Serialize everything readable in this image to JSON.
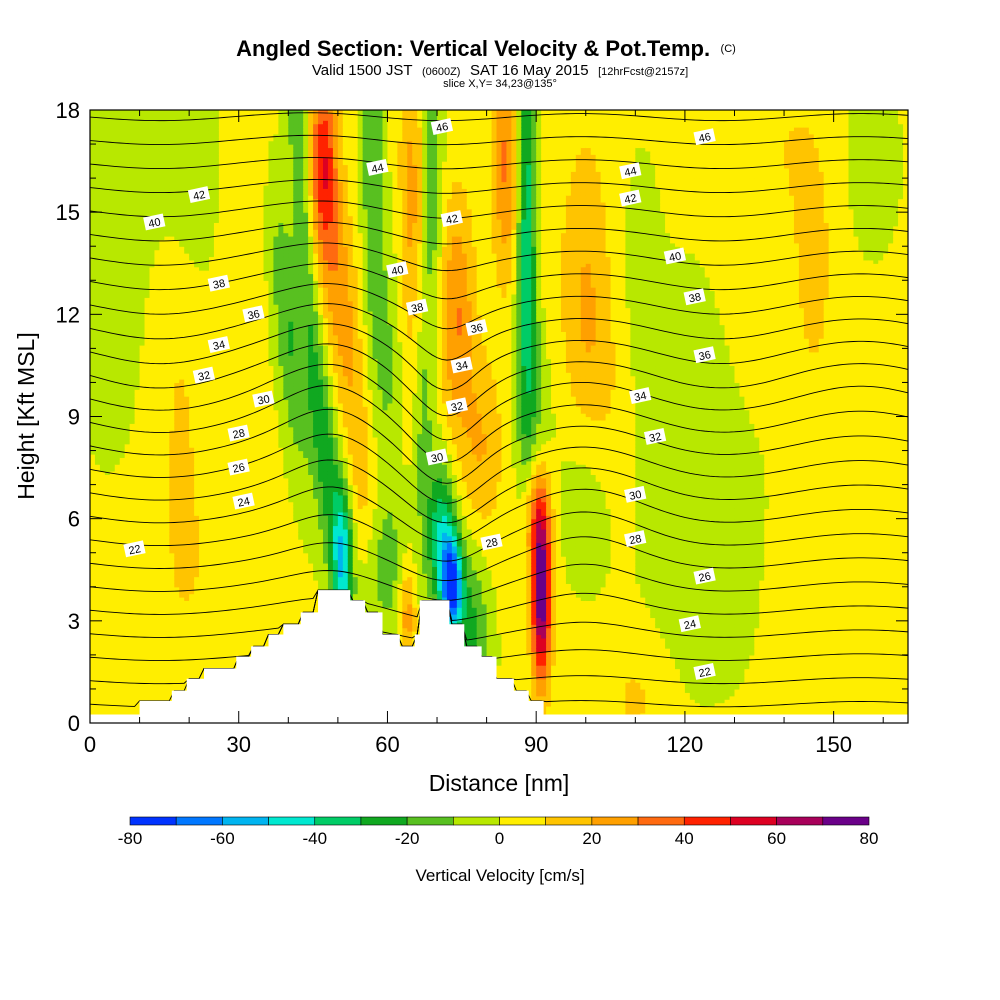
{
  "title": {
    "main": "Angled Section: Vertical Velocity & Pot.Temp.",
    "main_tag": "(C)",
    "valid_prefix": "Valid 1500 JST",
    "valid_utc": "(0600Z)",
    "valid_date": "SAT 16 May 2015",
    "forecast": "[12hrFcst@2157z]",
    "slice": "slice X,Y= 34,23@135°"
  },
  "chart_data": {
    "type": "heatmap",
    "xlabel": "Distance [nm]",
    "ylabel": "Height [Kft MSL]",
    "xlim": [
      0,
      165
    ],
    "ylim": [
      0,
      18
    ],
    "x_ticks": [
      0,
      30,
      60,
      90,
      120,
      150
    ],
    "x_tick_labels": [
      "0",
      "30",
      "60",
      "90",
      "120",
      "150"
    ],
    "y_ticks": [
      0,
      3,
      6,
      9,
      12,
      15,
      18
    ],
    "y_tick_labels": [
      "0",
      "3",
      "6",
      "9",
      "12",
      "15",
      "18"
    ],
    "colorbar": {
      "title": "Vertical Velocity [cm/s]",
      "levels": [
        -80,
        -70,
        -60,
        -50,
        -40,
        -30,
        -20,
        -10,
        0,
        10,
        20,
        30,
        40,
        50,
        60,
        70,
        80
      ],
      "tick_values": [
        -80,
        -60,
        -40,
        -20,
        0,
        20,
        40,
        60,
        80
      ],
      "tick_labels": [
        "-80",
        "-60",
        "-40",
        "-20",
        "0",
        "20",
        "40",
        "60",
        "80"
      ],
      "colors": [
        "#0033ff",
        "#0077ff",
        "#00b4f0",
        "#00e8d0",
        "#00cc66",
        "#10a820",
        "#58c020",
        "#b8e800",
        "#ffee00",
        "#ffc400",
        "#ffa000",
        "#ff6a10",
        "#ff2200",
        "#dd0022",
        "#a8005a",
        "#6a0088"
      ]
    },
    "wind_features": [
      {
        "x": 18,
        "z": 12,
        "sx": 4,
        "sz": 5,
        "w": 10
      },
      {
        "x": 22,
        "z": 4,
        "sx": 9,
        "sz": 3,
        "w": 6
      },
      {
        "x": 20,
        "z": 16.5,
        "sx": 5,
        "sz": 3,
        "w": -16
      },
      {
        "x": 5,
        "z": 14,
        "sx": 6,
        "sz": 5,
        "w": -6
      },
      {
        "x": 30,
        "z": 16,
        "sx": 4,
        "sz": 3,
        "w": 8
      },
      {
        "x": 42,
        "z": 17.5,
        "sx": 1.5,
        "sz": 5,
        "w": -22,
        "tilt": 0.4
      },
      {
        "x": 40,
        "z": 11.5,
        "sx": 2,
        "sz": 3,
        "w": -22,
        "tilt": 0.6
      },
      {
        "x": 48,
        "z": 7.5,
        "sx": 2,
        "sz": 3.2,
        "w": -28,
        "tilt": 0.7
      },
      {
        "x": 51,
        "z": 4.8,
        "sx": 1.4,
        "sz": 1.5,
        "w": -40
      },
      {
        "x": 47,
        "z": 16.5,
        "sx": 2,
        "sz": 2,
        "w": 42
      },
      {
        "x": 50,
        "z": 13,
        "sx": 2.5,
        "sz": 2.5,
        "w": 22,
        "tilt": 0.4
      },
      {
        "x": 55,
        "z": 7.5,
        "sx": 2.5,
        "sz": 3,
        "w": 15,
        "tilt": 0.5
      },
      {
        "x": 57,
        "z": 17,
        "sx": 1.5,
        "sz": 4,
        "w": -22
      },
      {
        "x": 60,
        "z": 10.5,
        "sx": 2.5,
        "sz": 3,
        "w": -14
      },
      {
        "x": 59,
        "z": 4.5,
        "sx": 3,
        "sz": 1.5,
        "w": -20
      },
      {
        "x": 65,
        "z": 15,
        "sx": 2,
        "sz": 4,
        "w": 22
      },
      {
        "x": 64,
        "z": 3.2,
        "sx": 1.2,
        "sz": 1,
        "w": 25
      },
      {
        "x": 69,
        "z": 16.5,
        "sx": 1.5,
        "sz": 4,
        "w": -22
      },
      {
        "x": 67,
        "z": 9,
        "sx": 1.5,
        "sz": 3,
        "w": -16
      },
      {
        "x": 71,
        "z": 5.5,
        "sx": 2,
        "sz": 1.5,
        "w": -42
      },
      {
        "x": 73,
        "z": 4,
        "sx": 1.5,
        "sz": 1,
        "w": -70
      },
      {
        "x": 74,
        "z": 12,
        "sx": 2.5,
        "sz": 2.5,
        "w": 28
      },
      {
        "x": 79,
        "z": 8,
        "sx": 3,
        "sz": 2,
        "w": 18
      },
      {
        "x": 77,
        "z": 2.5,
        "sx": 2.5,
        "sz": 2,
        "w": -25
      },
      {
        "x": 84,
        "z": 16.5,
        "sx": 2,
        "sz": 2.5,
        "w": 30
      },
      {
        "x": 88,
        "z": 15,
        "sx": 1.4,
        "sz": 5,
        "w": -38
      },
      {
        "x": 90,
        "z": 9.5,
        "sx": 2.5,
        "sz": 3,
        "w": -16
      },
      {
        "x": 101,
        "z": 7,
        "sx": 4,
        "sz": 2,
        "w": -15
      },
      {
        "x": 92,
        "z": 13,
        "sx": 2,
        "sz": 3,
        "w": 8
      },
      {
        "x": 91,
        "z": 3.8,
        "sx": 1.4,
        "sz": 1.8,
        "w": 80
      },
      {
        "x": 90,
        "z": 6.2,
        "sx": 2,
        "sz": 1.2,
        "w": 30
      },
      {
        "x": 100,
        "z": 12.5,
        "sx": 3.5,
        "sz": 3.5,
        "w": 18
      },
      {
        "x": 104,
        "z": 8.5,
        "sx": 4,
        "sz": 2.5,
        "w": 10
      },
      {
        "x": 111,
        "z": 12.5,
        "sx": 3,
        "sz": 3,
        "w": -6
      },
      {
        "x": 120,
        "z": 9,
        "sx": 5,
        "sz": 3,
        "w": -7
      },
      {
        "x": 125,
        "z": 5,
        "sx": 10,
        "sz": 3,
        "w": -6
      },
      {
        "x": 110,
        "z": 0.7,
        "sx": 4,
        "sz": 1.2,
        "w": 10
      },
      {
        "x": 140,
        "z": 17,
        "sx": 4,
        "sz": 2,
        "w": 7
      },
      {
        "x": 146,
        "z": 13.5,
        "sx": 3,
        "sz": 3,
        "w": 12
      },
      {
        "x": 158,
        "z": 16.5,
        "sx": 4,
        "sz": 2,
        "w": -6
      },
      {
        "x": 150,
        "z": 4,
        "sx": 9,
        "sz": 2,
        "w": 5
      }
    ],
    "terrain_step": [
      {
        "x": 0,
        "z": 0.25
      },
      {
        "x": 10,
        "z": 0.65
      },
      {
        "x": 16.5,
        "z": 0.95
      },
      {
        "x": 19.5,
        "z": 1.3
      },
      {
        "x": 23,
        "z": 1.6
      },
      {
        "x": 29.5,
        "z": 1.95
      },
      {
        "x": 32.5,
        "z": 2.25
      },
      {
        "x": 36,
        "z": 2.6
      },
      {
        "x": 39,
        "z": 2.9
      },
      {
        "x": 42.5,
        "z": 3.25
      },
      {
        "x": 46,
        "z": 3.9
      },
      {
        "x": 52.5,
        "z": 3.6
      },
      {
        "x": 55.5,
        "z": 3.25
      },
      {
        "x": 59,
        "z": 2.6
      },
      {
        "x": 62.5,
        "z": 2.25
      },
      {
        "x": 65.5,
        "z": 2.6
      },
      {
        "x": 66.5,
        "z": 3.6
      },
      {
        "x": 72.5,
        "z": 2.9
      },
      {
        "x": 75.5,
        "z": 2.25
      },
      {
        "x": 79,
        "z": 1.95
      },
      {
        "x": 82,
        "z": 1.3
      },
      {
        "x": 85.5,
        "z": 0.95
      },
      {
        "x": 88.5,
        "z": 0.65
      },
      {
        "x": 91.5,
        "z": 0.25
      },
      {
        "x": 165,
        "z": 0.25
      }
    ],
    "theta_contours": {
      "levels": [
        21,
        22,
        23,
        24,
        25,
        26,
        27,
        28,
        29,
        30,
        31,
        32,
        33,
        34,
        35,
        36,
        37,
        38,
        39,
        40,
        41,
        42,
        43,
        44,
        45,
        46,
        47
      ]
    },
    "contour_labels": [
      {
        "text": "22",
        "x": 9,
        "z": 5.1
      },
      {
        "text": "24",
        "x": 31,
        "z": 6.5
      },
      {
        "text": "26",
        "x": 30,
        "z": 7.5
      },
      {
        "text": "28",
        "x": 30,
        "z": 8.5
      },
      {
        "text": "30",
        "x": 35,
        "z": 9.5
      },
      {
        "text": "32",
        "x": 23,
        "z": 10.2
      },
      {
        "text": "34",
        "x": 26,
        "z": 11.1
      },
      {
        "text": "36",
        "x": 33,
        "z": 12.0
      },
      {
        "text": "38",
        "x": 26,
        "z": 12.9
      },
      {
        "text": "40",
        "x": 13,
        "z": 14.7
      },
      {
        "text": "42",
        "x": 22,
        "z": 15.5
      },
      {
        "text": "44",
        "x": 58,
        "z": 16.3
      },
      {
        "text": "46",
        "x": 71,
        "z": 17.5
      },
      {
        "text": "42",
        "x": 73,
        "z": 14.8
      },
      {
        "text": "40",
        "x": 62,
        "z": 13.3
      },
      {
        "text": "38",
        "x": 66,
        "z": 12.2
      },
      {
        "text": "36",
        "x": 78,
        "z": 11.6
      },
      {
        "text": "34",
        "x": 75,
        "z": 10.5
      },
      {
        "text": "32",
        "x": 74,
        "z": 9.3
      },
      {
        "text": "30",
        "x": 70,
        "z": 7.8
      },
      {
        "text": "28",
        "x": 81,
        "z": 5.3
      },
      {
        "text": "46",
        "x": 124,
        "z": 17.2
      },
      {
        "text": "44",
        "x": 109,
        "z": 16.2
      },
      {
        "text": "42",
        "x": 109,
        "z": 15.4
      },
      {
        "text": "40",
        "x": 118,
        "z": 13.7
      },
      {
        "text": "38",
        "x": 122,
        "z": 12.5
      },
      {
        "text": "36",
        "x": 124,
        "z": 10.8
      },
      {
        "text": "34",
        "x": 111,
        "z": 9.6
      },
      {
        "text": "32",
        "x": 114,
        "z": 8.4
      },
      {
        "text": "30",
        "x": 110,
        "z": 6.7
      },
      {
        "text": "28",
        "x": 110,
        "z": 5.4
      },
      {
        "text": "26",
        "x": 124,
        "z": 4.3
      },
      {
        "text": "24",
        "x": 121,
        "z": 2.9
      },
      {
        "text": "22",
        "x": 124,
        "z": 1.5
      }
    ]
  }
}
